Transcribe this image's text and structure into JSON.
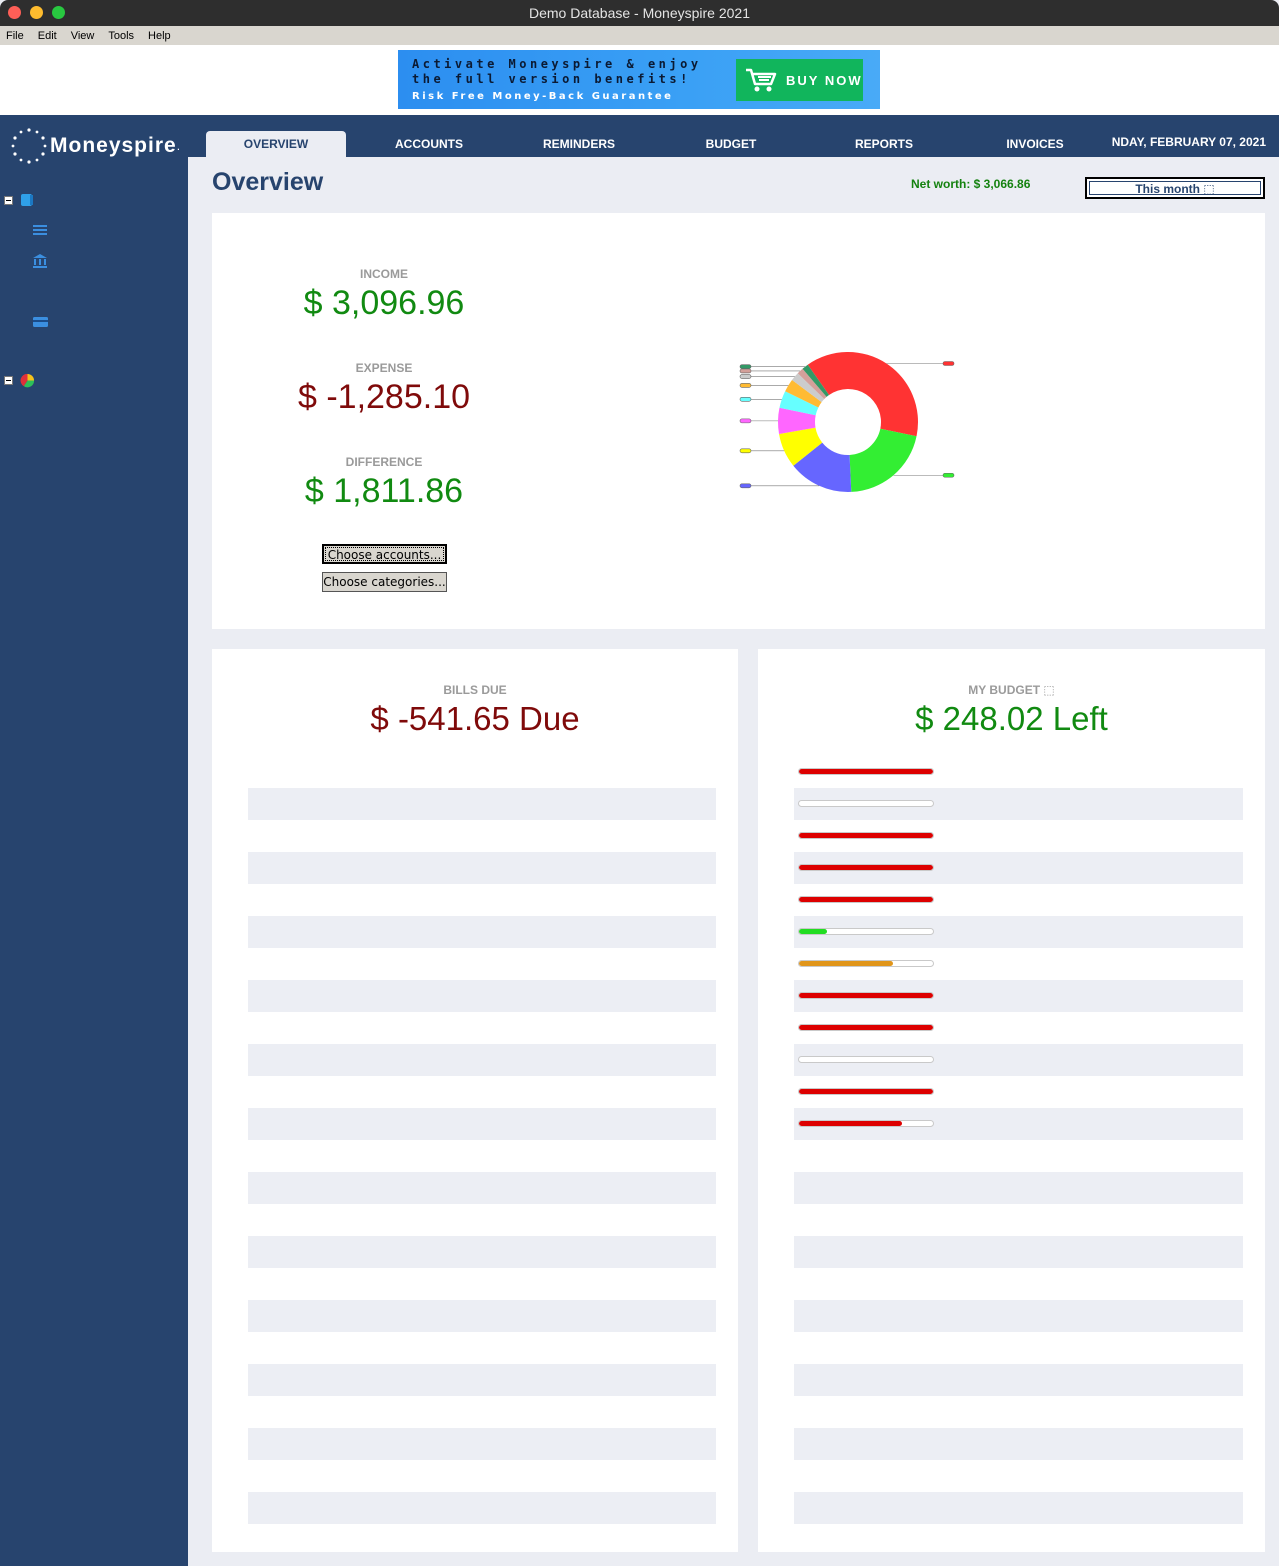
{
  "window": {
    "title": "Demo Database - Moneyspire 2021"
  },
  "menu": [
    "File",
    "Edit",
    "View",
    "Tools",
    "Help"
  ],
  "ad": {
    "line1": "Activate Moneyspire & enjoy",
    "line2": "the full version benefits!",
    "line3": "Risk Free Money-Back Guarantee",
    "button": "BUY NOW"
  },
  "sidebar": {
    "logo": "Moneyspire",
    "logo_mark": ".",
    "icons": [
      "book-icon",
      "list-icon",
      "bank-icon",
      "credit-card-icon",
      "pie-chart-icon"
    ]
  },
  "tabs": [
    "OVERVIEW",
    "ACCOUNTS",
    "REMINDERS",
    "BUDGET",
    "REPORTS",
    "INVOICES"
  ],
  "date": "NDAY, FEBRUARY 07, 2021",
  "overview": {
    "title": "Overview",
    "net_worth": "Net worth: $ 3,066.86",
    "period": "This month ⬚",
    "income_label": "INCOME",
    "income_value": "$ 3,096.96",
    "expense_label": "EXPENSE",
    "expense_value": "$ -1,285.10",
    "difference_label": "DIFFERENCE",
    "difference_value": "$ 1,811.86",
    "choose_accounts": "Choose accounts...",
    "choose_categories": "Choose categories..."
  },
  "chart_data": {
    "type": "pie",
    "values": [
      38,
      21,
      15,
      8,
      6,
      4,
      3,
      2,
      1.5,
      1.5
    ],
    "colors": [
      "#ff3333",
      "#33ee33",
      "#6666ff",
      "#ffff00",
      "#ff66ff",
      "#66ffff",
      "#ffbb33",
      "#cccccc",
      "#d4a09a",
      "#339966"
    ],
    "donut": true
  },
  "bills": {
    "label": "BILLS DUE",
    "value": "$ -541.65 Due"
  },
  "budget": {
    "label": "MY BUDGET ⬚",
    "value": "$ 248.02 Left",
    "bars": [
      {
        "fill": 1.0,
        "color": "#dd0000"
      },
      {
        "fill": 0.0,
        "color": "#dd0000"
      },
      {
        "fill": 1.0,
        "color": "#dd0000"
      },
      {
        "fill": 1.0,
        "color": "#dd0000"
      },
      {
        "fill": 1.0,
        "color": "#dd0000"
      },
      {
        "fill": 0.21,
        "color": "#22dd22"
      },
      {
        "fill": 0.7,
        "color": "#e0951a"
      },
      {
        "fill": 1.0,
        "color": "#dd0000"
      },
      {
        "fill": 1.0,
        "color": "#dd0000"
      },
      {
        "fill": 0.0,
        "color": "#dd0000"
      },
      {
        "fill": 1.0,
        "color": "#dd0000"
      },
      {
        "fill": 0.77,
        "color": "#dd0000"
      }
    ]
  }
}
